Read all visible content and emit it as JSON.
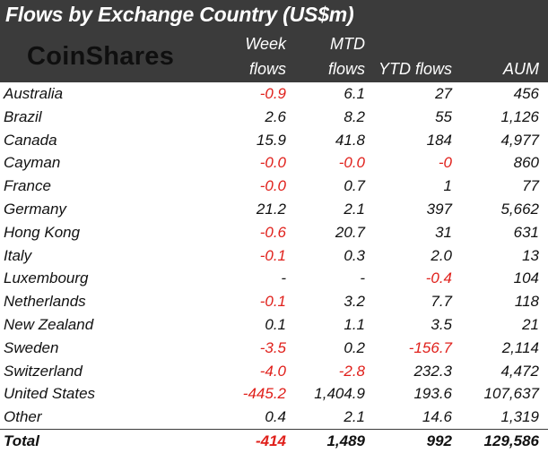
{
  "header": {
    "title": "Flows by Exchange Country (US$m)",
    "logo": "CoinShares"
  },
  "colors": {
    "header_bg": "#3b3b3b",
    "header_text": "#ffffff",
    "positive_text": "#111111",
    "negative_text": "#e0201b",
    "logo_text": "#0f0f0f"
  },
  "chart_data": {
    "type": "table",
    "title": "Flows by Exchange Country (US$m)",
    "columns": [
      {
        "key": "country",
        "lines": [
          "",
          ""
        ]
      },
      {
        "key": "week",
        "lines": [
          "Week",
          "flows"
        ]
      },
      {
        "key": "mtd",
        "lines": [
          "MTD",
          "flows"
        ]
      },
      {
        "key": "ytd",
        "lines": [
          "",
          "YTD flows"
        ]
      },
      {
        "key": "aum",
        "lines": [
          "",
          "AUM"
        ]
      }
    ],
    "rows": [
      {
        "country": "Australia",
        "week": "-0.9",
        "mtd": "6.1",
        "ytd": "27",
        "aum": "456"
      },
      {
        "country": "Brazil",
        "week": "2.6",
        "mtd": "8.2",
        "ytd": "55",
        "aum": "1,126"
      },
      {
        "country": "Canada",
        "week": "15.9",
        "mtd": "41.8",
        "ytd": "184",
        "aum": "4,977"
      },
      {
        "country": "Cayman",
        "week": "-0.0",
        "mtd": "-0.0",
        "ytd": "-0",
        "aum": "860"
      },
      {
        "country": "France",
        "week": "-0.0",
        "mtd": "0.7",
        "ytd": "1",
        "aum": "77"
      },
      {
        "country": "Germany",
        "week": "21.2",
        "mtd": "2.1",
        "ytd": "397",
        "aum": "5,662"
      },
      {
        "country": "Hong Kong",
        "week": "-0.6",
        "mtd": "20.7",
        "ytd": "31",
        "aum": "631"
      },
      {
        "country": "Italy",
        "week": "-0.1",
        "mtd": "0.3",
        "ytd": "2.0",
        "aum": "13"
      },
      {
        "country": "Luxembourg",
        "week": "-",
        "mtd": "-",
        "ytd": "-0.4",
        "aum": "104"
      },
      {
        "country": "Netherlands",
        "week": "-0.1",
        "mtd": "3.2",
        "ytd": "7.7",
        "aum": "118"
      },
      {
        "country": "New Zealand",
        "week": "0.1",
        "mtd": "1.1",
        "ytd": "3.5",
        "aum": "21"
      },
      {
        "country": "Sweden",
        "week": "-3.5",
        "mtd": "0.2",
        "ytd": "-156.7",
        "aum": "2,114"
      },
      {
        "country": "Switzerland",
        "week": "-4.0",
        "mtd": "-2.8",
        "ytd": "232.3",
        "aum": "4,472"
      },
      {
        "country": "United States",
        "week": "-445.2",
        "mtd": "1,404.9",
        "ytd": "193.6",
        "aum": "107,637"
      },
      {
        "country": "Other",
        "week": "0.4",
        "mtd": "2.1",
        "ytd": "14.6",
        "aum": "1,319"
      }
    ],
    "total": {
      "country": "Total",
      "week": "-414",
      "mtd": "1,489",
      "ytd": "992",
      "aum": "129,586"
    }
  }
}
